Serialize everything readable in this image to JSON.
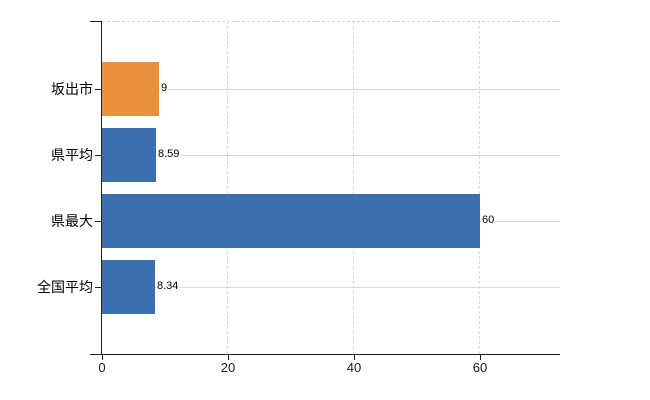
{
  "chart_data": {
    "type": "bar",
    "orientation": "horizontal",
    "categories": [
      "坂出市",
      "県平均",
      "県最大",
      "全国平均"
    ],
    "values": [
      9,
      8.59,
      60,
      8.34
    ],
    "value_labels": [
      "9",
      "8.59",
      "60",
      "8.34"
    ],
    "bar_colors": [
      "#ea913c",
      "#3a70ae",
      "#3a70ae",
      "#3a70ae"
    ],
    "x_ticks": [
      0,
      20,
      40,
      60
    ],
    "x_tick_labels": [
      "0",
      "20",
      "40",
      "60"
    ],
    "xlim": [
      0,
      72.7
    ],
    "grid": {
      "horizontal": true,
      "vertical": true,
      "top_border": "dashed"
    }
  },
  "colors": {
    "background": "#ffffff",
    "axis": "#1f1f1f",
    "grid_horizontal": "#d5ddd5",
    "grid_vertical": "#d8d8d8",
    "bar_orange": "#ea913c",
    "bar_blue": "#3a70ae",
    "text": "#000000"
  }
}
